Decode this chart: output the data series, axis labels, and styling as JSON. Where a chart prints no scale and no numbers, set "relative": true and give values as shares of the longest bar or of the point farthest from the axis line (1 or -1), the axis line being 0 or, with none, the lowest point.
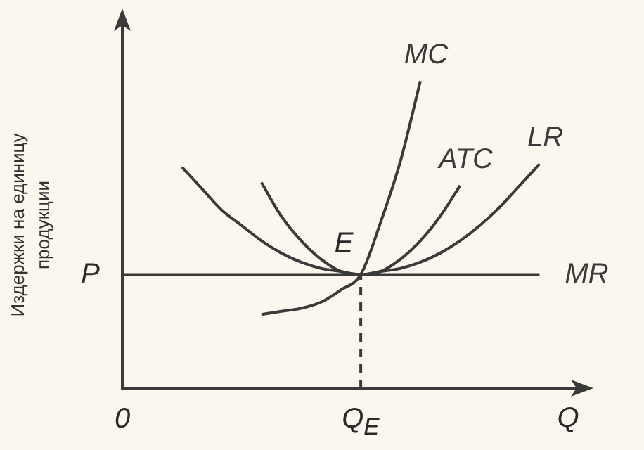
{
  "chart_data": {
    "type": "line",
    "relative": true,
    "xlabel": "Q",
    "ylabel": "Издержки на единицу продукции",
    "categories": [
      "0",
      null,
      null,
      null,
      null,
      null,
      null,
      null,
      null,
      null,
      null,
      null,
      "Q$_{E}$",
      null,
      null,
      null,
      null,
      null,
      null,
      null,
      null,
      null,
      null,
      null
    ],
    "series": [
      {
        "name": "LR",
        "color": "#3a3a3a",
        "values": [
          null,
          null,
          null,
          0.72,
          0.65,
          0.58,
          0.53,
          0.48,
          0.44,
          0.41,
          0.39,
          0.38,
          0.37,
          0.38,
          0.39,
          0.41,
          0.44,
          0.48,
          0.53,
          0.59,
          0.66,
          0.73,
          null,
          null
        ]
      },
      {
        "name": "ATC",
        "color": "#3a3a3a",
        "values": [
          null,
          null,
          null,
          null,
          null,
          null,
          null,
          0.67,
          0.56,
          0.48,
          0.42,
          0.38,
          0.37,
          0.38,
          0.42,
          0.48,
          0.56,
          0.66,
          null,
          null,
          null,
          null,
          null,
          null
        ]
      },
      {
        "name": "MC",
        "color": "#3a3a3a",
        "values": [
          null,
          null,
          null,
          null,
          null,
          null,
          null,
          0.24,
          0.25,
          0.26,
          0.28,
          0.32,
          0.37,
          0.54,
          0.74,
          1,
          null,
          null,
          null,
          null,
          null,
          null,
          null,
          null
        ]
      },
      {
        "name": "MR",
        "color": "#3a3a3a",
        "values": [
          0.37,
          0.37,
          0.37,
          0.37,
          0.37,
          0.37,
          0.37,
          0.37,
          0.37,
          0.37,
          0.37,
          0.37,
          0.37,
          0.37,
          0.37,
          0.37,
          0.37,
          0.37,
          0.37,
          0.37,
          0.37,
          0.37,
          null,
          null
        ]
      }
    ],
    "ref_lines": [
      {
        "axis": "x",
        "value": "Q$_{E}$",
        "line_style": "dashed",
        "color": "#3a3a3a"
      }
    ],
    "annotations": [
      {
        "text": "E",
        "x": "Q$_{E}$",
        "y": 0.37
      },
      "P"
    ],
    "grid": false,
    "legend": false,
    "marker": "none",
    "line_style": "solid"
  }
}
